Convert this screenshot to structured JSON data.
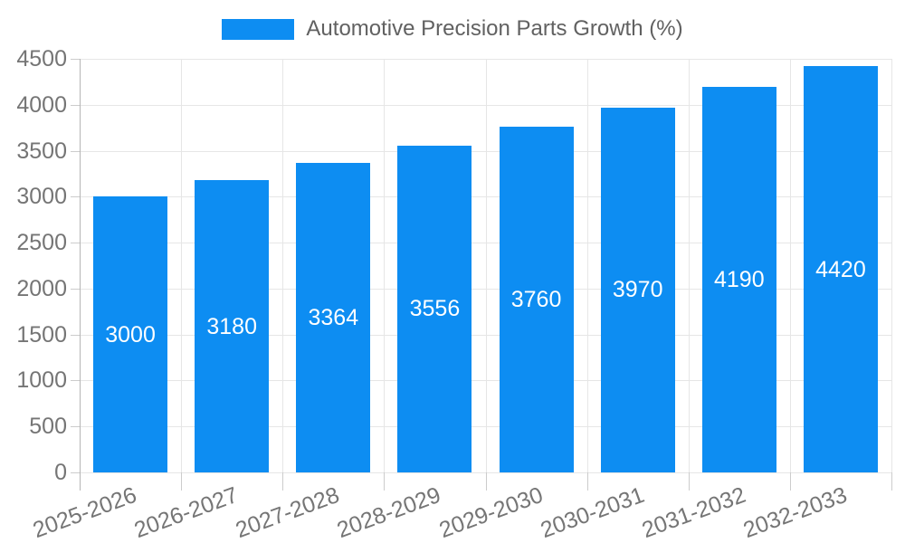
{
  "legend": {
    "label": "Automotive Precision Parts Growth (%)"
  },
  "chart_data": {
    "type": "bar",
    "title": "Automotive Precision Parts Growth (%)",
    "categories": [
      "2025-2026",
      "2026-2027",
      "2027-2028",
      "2028-2029",
      "2029-2030",
      "2030-2031",
      "2031-2032",
      "2032-2033"
    ],
    "values": [
      3000,
      3180,
      3364,
      3556,
      3760,
      3970,
      4190,
      4420
    ],
    "xlabel": "",
    "ylabel": "",
    "ylim": [
      0,
      4500
    ],
    "yticks": [
      0,
      500,
      1000,
      1500,
      2000,
      2500,
      3000,
      3500,
      4000,
      4500
    ],
    "grid": true,
    "legend_position": "top",
    "bar_color": "#0d8df2",
    "value_label_color": "#ffffff",
    "axis_text_color": "#757575",
    "gridline_color": "#e6e6e6",
    "x_label_rotation_deg": -20
  }
}
